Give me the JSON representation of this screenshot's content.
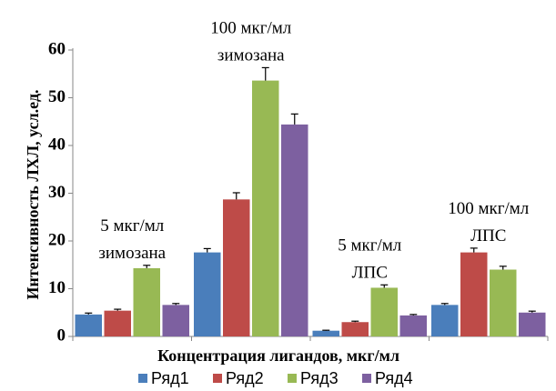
{
  "chart_data": {
    "type": "bar",
    "title": "",
    "xlabel": "Концентрация лигандов, мкг/мл",
    "ylabel": "Интенсивность ЛХЛ, усл.ед.",
    "ylim": [
      0,
      60
    ],
    "yticks": [
      "0",
      "10",
      "20",
      "30",
      "40",
      "50",
      "60"
    ],
    "grid": false,
    "legend": "bottom",
    "categories": [
      "",
      "",
      "",
      ""
    ],
    "series": [
      {
        "name": "Ряд1",
        "color": "#4a7ebb",
        "values": [
          4.6,
          17.6,
          1.2,
          6.6
        ],
        "errors": [
          0.3,
          0.8,
          0.1,
          0.3
        ]
      },
      {
        "name": "Ряд2",
        "color": "#be4b48",
        "values": [
          5.4,
          28.7,
          3.0,
          17.6
        ],
        "errors": [
          0.3,
          1.4,
          0.2,
          0.9
        ]
      },
      {
        "name": "Ряд3",
        "color": "#98b954",
        "values": [
          14.3,
          53.6,
          10.2,
          14.0
        ],
        "errors": [
          0.6,
          2.7,
          0.6,
          0.7
        ]
      },
      {
        "name": "Ряд4",
        "color": "#7d60a0",
        "values": [
          6.6,
          44.4,
          4.4,
          5.0
        ],
        "errors": [
          0.3,
          2.2,
          0.2,
          0.3
        ]
      }
    ],
    "annotations": [
      {
        "lines": [
          "5 мкг/мл",
          "зимозана"
        ],
        "category": 0
      },
      {
        "lines": [
          "100 мкг/мл",
          "зимозана"
        ],
        "category": 1
      },
      {
        "lines": [
          "5 мкг/мл",
          "ЛПС"
        ],
        "category": 2
      },
      {
        "lines": [
          "100 мкг/мл",
          "ЛПС"
        ],
        "category": 3
      }
    ]
  }
}
